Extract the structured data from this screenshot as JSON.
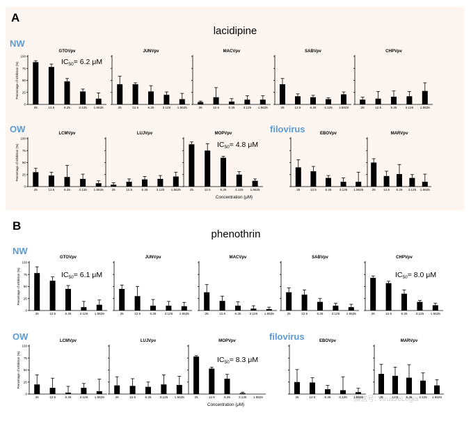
{
  "panels": {
    "A": {
      "letter": "A",
      "title": "lacidipine",
      "xlabel": "Concentration (μM)"
    },
    "B": {
      "letter": "B",
      "title": "phenothrin",
      "xlabel": "Concentration (μM)"
    }
  },
  "group_labels": {
    "nw": "NW",
    "ow": "OW",
    "filo": "filovirus"
  },
  "axis": {
    "ylabel": "Percentage of inhibition (%)",
    "yticks": [
      0,
      25,
      50,
      75,
      100
    ],
    "categories": [
      "25",
      "12.5",
      "6.25",
      "3.125",
      "1.5625"
    ]
  },
  "watermark": {
    "text": "微信号: VirusJeLogia"
  },
  "chart_data": [
    {
      "type": "bar",
      "panel": "A",
      "title": "GTOVpv",
      "ylabel": "Percentage of inhibition (%)",
      "ylim": [
        0,
        100
      ],
      "categories": [
        "25",
        "12.5",
        "6.25",
        "3.125",
        "1.5625"
      ],
      "values": [
        88,
        78,
        48,
        27,
        12
      ],
      "errors": [
        3,
        6,
        6,
        5,
        12
      ],
      "ic50": {
        "prefix": "IC",
        "sub": "50",
        "value": "= 6.2 μM"
      }
    },
    {
      "type": "bar",
      "panel": "A",
      "title": "JUNVpv",
      "ylim": [
        0,
        100
      ],
      "categories": [
        "25",
        "12.5",
        "6.25",
        "3.125",
        "1.5625"
      ],
      "values": [
        42,
        42,
        27,
        20,
        11
      ],
      "errors": [
        17,
        3,
        12,
        6,
        12
      ]
    },
    {
      "type": "bar",
      "panel": "A",
      "title": "MACVpv",
      "ylim": [
        0,
        100
      ],
      "categories": [
        "25",
        "12.5",
        "6.25",
        "3.125",
        "1.5625"
      ],
      "values": [
        5,
        15,
        6,
        10,
        10
      ],
      "errors": [
        2,
        20,
        6,
        8,
        8
      ]
    },
    {
      "type": "bar",
      "panel": "A",
      "title": "SABVpv",
      "ylim": [
        0,
        100
      ],
      "categories": [
        "25",
        "12.5",
        "6.25",
        "3.125",
        "1.5625"
      ],
      "values": [
        42,
        17,
        15,
        11,
        21
      ],
      "errors": [
        12,
        5,
        4,
        3,
        5
      ]
    },
    {
      "type": "bar",
      "panel": "A",
      "title": "CHPVpv",
      "ylim": [
        0,
        100
      ],
      "categories": [
        "25",
        "12.5",
        "6.25",
        "3.125",
        "1.5625"
      ],
      "values": [
        10,
        12,
        16,
        17,
        28
      ],
      "errors": [
        5,
        15,
        12,
        10,
        17
      ]
    },
    {
      "type": "bar",
      "panel": "A",
      "title": "LCMVpv",
      "ylim": [
        0,
        100
      ],
      "categories": [
        "25",
        "12.5",
        "6.25",
        "3.125",
        "1.5625"
      ],
      "values": [
        30,
        23,
        20,
        16,
        7
      ],
      "errors": [
        8,
        7,
        24,
        10,
        5
      ]
    },
    {
      "type": "bar",
      "panel": "A",
      "title": "LUJVpv",
      "ylim": [
        0,
        100
      ],
      "categories": [
        "25",
        "12.5",
        "6.25",
        "3.125",
        "1.5625"
      ],
      "values": [
        4,
        10,
        15,
        16,
        21
      ],
      "errors": [
        4,
        6,
        6,
        7,
        9
      ]
    },
    {
      "type": "bar",
      "panel": "A",
      "title": "MOPVpv",
      "ylim": [
        0,
        100
      ],
      "categories": [
        "25",
        "12.5",
        "6.25",
        "3.125",
        "1.5625"
      ],
      "values": [
        88,
        75,
        60,
        25,
        12
      ],
      "errors": [
        5,
        14,
        3,
        6,
        4
      ],
      "ic50": {
        "prefix": "IC",
        "sub": "50",
        "value": "= 4.8 μM"
      }
    },
    {
      "type": "bar",
      "panel": "A",
      "title": "EBOVpv",
      "ylim": [
        0,
        100
      ],
      "categories": [
        "25",
        "12.5",
        "6.25",
        "3.125",
        "1.5625"
      ],
      "values": [
        40,
        32,
        18,
        10,
        10
      ],
      "errors": [
        16,
        10,
        5,
        8,
        20
      ]
    },
    {
      "type": "bar",
      "panel": "A",
      "title": "MARVpv",
      "ylim": [
        0,
        100
      ],
      "categories": [
        "25",
        "12.5",
        "6.25",
        "3.125",
        "1.5625"
      ],
      "values": [
        50,
        22,
        26,
        18,
        10
      ],
      "errors": [
        8,
        10,
        20,
        7,
        16
      ]
    },
    {
      "type": "bar",
      "panel": "B",
      "title": "GTOVpv",
      "ylim": [
        0,
        100
      ],
      "categories": [
        "25",
        "12.5",
        "6.25",
        "3.125",
        "1.5625"
      ],
      "values": [
        78,
        62,
        45,
        7,
        12
      ],
      "errors": [
        13,
        8,
        7,
        12,
        10
      ],
      "ic50": {
        "prefix": "IC",
        "sub": "50",
        "value": "= 6.1 μM"
      }
    },
    {
      "type": "bar",
      "panel": "B",
      "title": "JUNVpv",
      "ylim": [
        0,
        100
      ],
      "categories": [
        "25",
        "12.5",
        "6.25",
        "3.125",
        "1.5625"
      ],
      "values": [
        45,
        30,
        10,
        10,
        9
      ],
      "errors": [
        8,
        20,
        13,
        9,
        8
      ]
    },
    {
      "type": "bar",
      "panel": "B",
      "title": "MACVpv",
      "ylim": [
        0,
        100
      ],
      "categories": [
        "25",
        "12.5",
        "6.25",
        "3.125",
        "1.5625"
      ],
      "values": [
        38,
        20,
        10,
        4,
        3
      ],
      "errors": [
        16,
        10,
        8,
        6,
        4
      ]
    },
    {
      "type": "bar",
      "panel": "B",
      "title": "SABVpv",
      "ylim": [
        0,
        100
      ],
      "categories": [
        "25",
        "12.5",
        "6.25",
        "3.125",
        "1.5625"
      ],
      "values": [
        38,
        33,
        18,
        10,
        7
      ],
      "errors": [
        9,
        10,
        7,
        5,
        6
      ]
    },
    {
      "type": "bar",
      "panel": "B",
      "title": "CHPVpv",
      "ylim": [
        0,
        100
      ],
      "categories": [
        "25",
        "12.5",
        "6.25",
        "3.125",
        "1.5625"
      ],
      "values": [
        68,
        57,
        35,
        18,
        11
      ],
      "errors": [
        4,
        4,
        8,
        3,
        4
      ],
      "ic50": {
        "prefix": "IC",
        "sub": "50",
        "value": "= 8.0  μM"
      }
    },
    {
      "type": "bar",
      "panel": "B",
      "title": "LCMVpv",
      "ylim": [
        0,
        100
      ],
      "categories": [
        "25",
        "12.5",
        "6.25",
        "3.125",
        "1.5625"
      ],
      "values": [
        20,
        13,
        3,
        13,
        6
      ],
      "errors": [
        20,
        20,
        13,
        9,
        25
      ]
    },
    {
      "type": "bar",
      "panel": "B",
      "title": "LUJVpv",
      "ylim": [
        0,
        100
      ],
      "categories": [
        "25",
        "12.5",
        "6.25",
        "3.125",
        "1.5625"
      ],
      "values": [
        18,
        17,
        15,
        20,
        19
      ],
      "errors": [
        18,
        15,
        10,
        20,
        18
      ]
    },
    {
      "type": "bar",
      "panel": "B",
      "title": "MOPVpv",
      "ylim": [
        0,
        100
      ],
      "categories": [
        "25",
        "12.5",
        "6.25",
        "3.125",
        "1.5625"
      ],
      "values": [
        78,
        53,
        32,
        2,
        0
      ],
      "errors": [
        2,
        3,
        9,
        2,
        0
      ],
      "ic50": {
        "prefix": "IC",
        "sub": "50",
        "value": "= 8.3 μM"
      }
    },
    {
      "type": "bar",
      "panel": "B",
      "title": "EBOVpv",
      "ylim": [
        0,
        100
      ],
      "categories": [
        "25",
        "12.5",
        "6.25",
        "3.125",
        "1.5625"
      ],
      "values": [
        25,
        24,
        10,
        8,
        4
      ],
      "errors": [
        26,
        10,
        8,
        28,
        8
      ]
    },
    {
      "type": "bar",
      "panel": "B",
      "title": "MARVpv",
      "ylim": [
        0,
        100
      ],
      "categories": [
        "25",
        "12.5",
        "6.25",
        "3.125",
        "1.5625"
      ],
      "values": [
        42,
        38,
        34,
        28,
        18
      ],
      "errors": [
        20,
        18,
        27,
        16,
        12
      ]
    }
  ]
}
